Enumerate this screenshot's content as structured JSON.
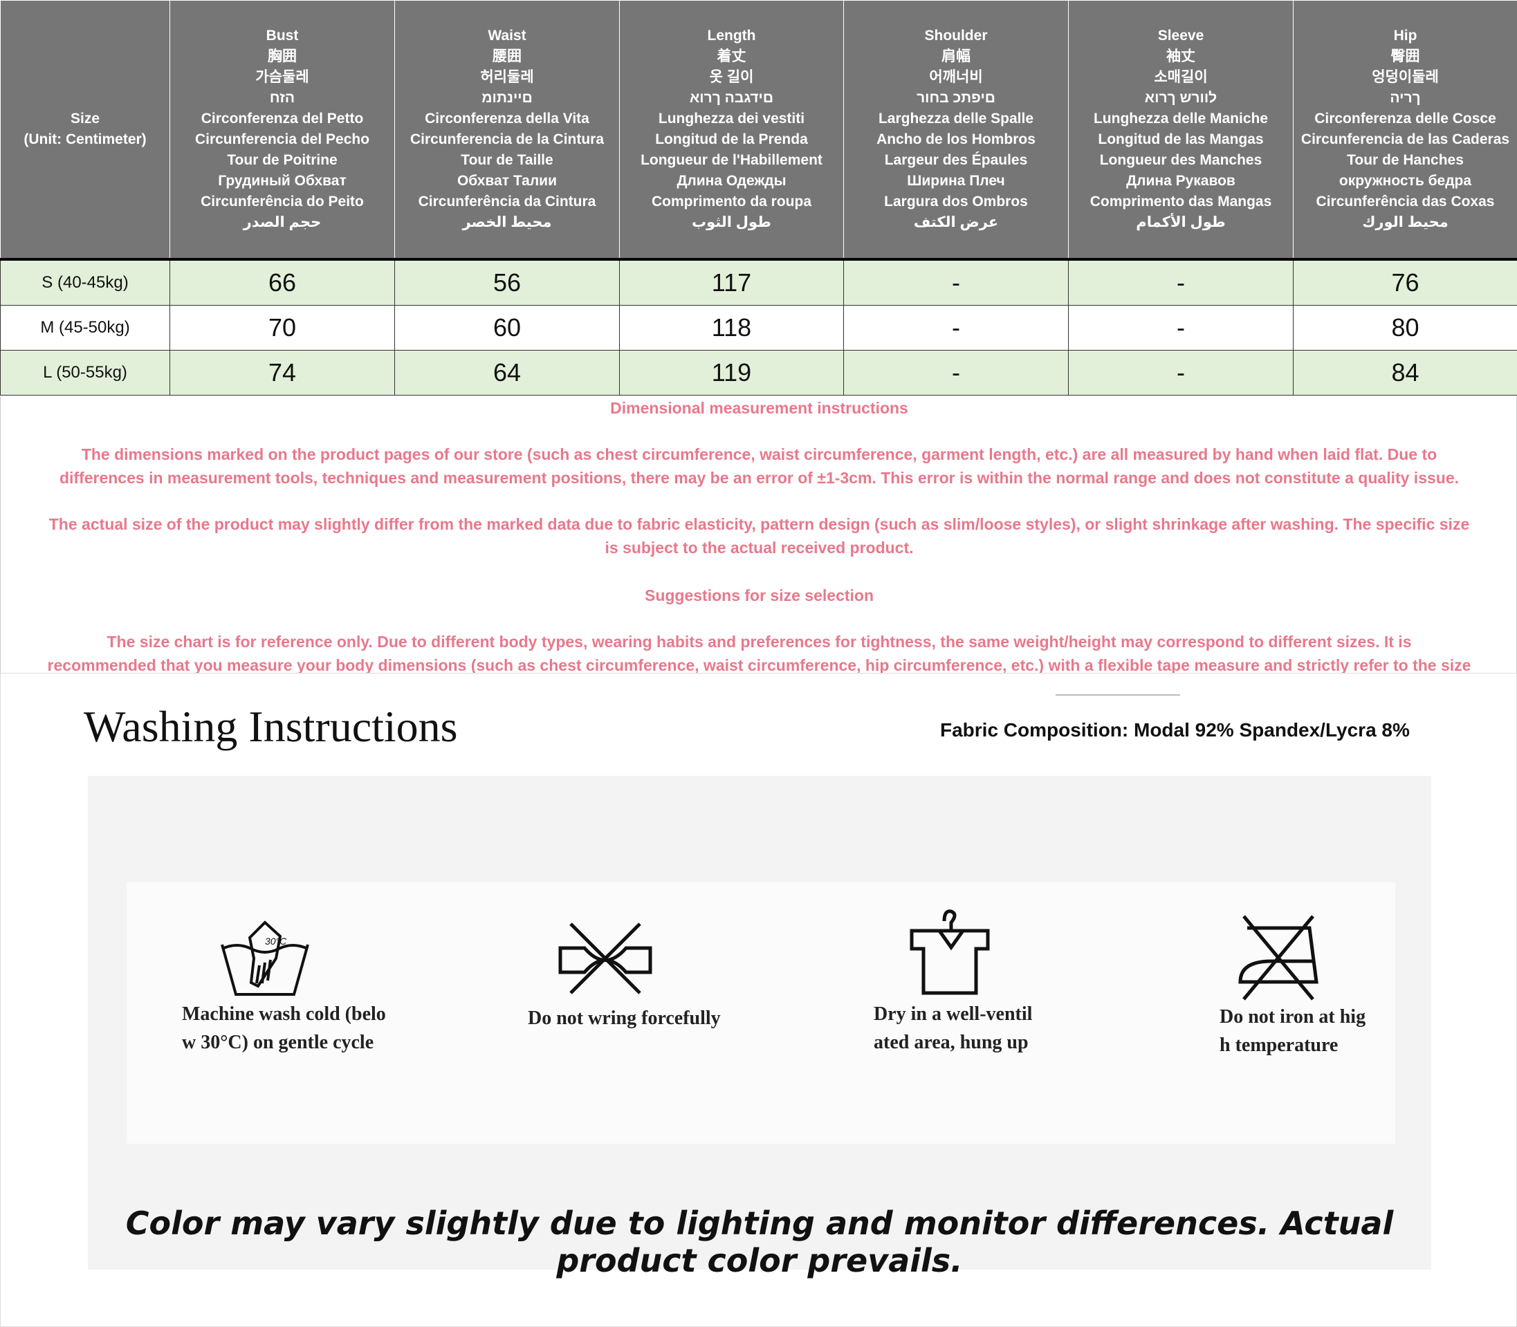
{
  "size_chart": {
    "headers": [
      {
        "key": "size",
        "lines": [
          "Size",
          "(Unit: Centimeter)"
        ]
      },
      {
        "key": "bust",
        "lines": [
          "Bust",
          "胸囲",
          "가슴둘레",
          "הזח",
          "Circonferenza del Petto",
          "Circunferencia del Pecho",
          "Tour de Poitrine",
          "Грудиный Обхват",
          "Circunferência do Peito",
          "حجم الصدر"
        ]
      },
      {
        "key": "waist",
        "lines": [
          "Waist",
          "腰囲",
          "허리둘레",
          "םיינתומ",
          "Circonferenza della Vita",
          "Circunferencia de la Cintura",
          "Tour de Taille",
          "Обхват Талии",
          "Circunferência da Cintura",
          "محيط الخصر"
        ]
      },
      {
        "key": "length",
        "lines": [
          "Length",
          "着丈",
          "옷 길이",
          "םידגבה ךרוא",
          "Lunghezza dei vestiti",
          "Longitud de la Prenda",
          "Longueur de l'Habillement",
          "Длина Одежды",
          "Comprimento da roupa",
          "طول الثوب"
        ]
      },
      {
        "key": "shoulder",
        "lines": [
          "Shoulder",
          "肩幅",
          "어깨너비",
          "םיפתכ בחור",
          "Larghezza delle Spalle",
          "Ancho de los Hombros",
          "Largeur des Épaules",
          "Ширина Плеч",
          "Largura dos Ombros",
          "عرض الكتف"
        ]
      },
      {
        "key": "sleeve",
        "lines": [
          "Sleeve",
          "袖丈",
          "소매길이",
          "לוורש ךרוא",
          "Lunghezza delle Maniche",
          "Longitud de las Mangas",
          "Longueur des Manches",
          "Длина Рукавов",
          "Comprimento das Mangas",
          "طول الأكمام"
        ]
      },
      {
        "key": "hip",
        "lines": [
          "Hip",
          "臀囲",
          "엉덩이둘레",
          "ךריה",
          "Circonferenza delle Cosce",
          "Circunferencia de las Caderas",
          "Tour de Hanches",
          "окружность бедра",
          "Circunferência das Coxas",
          "محيط الورك"
        ]
      }
    ],
    "rows": [
      {
        "cells": [
          "S (40-45kg)",
          "66",
          "56",
          "117",
          "-",
          "-",
          "76"
        ],
        "highlight": true
      },
      {
        "cells": [
          "M (45-50kg)",
          "70",
          "60",
          "118",
          "-",
          "-",
          "80"
        ],
        "highlight": false
      },
      {
        "cells": [
          "L (50-55kg)",
          "74",
          "64",
          "119",
          "-",
          "-",
          "84"
        ],
        "highlight": true
      }
    ],
    "highlight_color": "#e2f0d9",
    "header_color": "#767676"
  },
  "notes": {
    "color": "#e8788c",
    "title": "Dimensional measurement instructions",
    "para1_l1": "The dimensions marked on the product pages of our store (such as chest circumference, waist circumference, garment length, etc.) are all measured by hand when laid flat. Due to",
    "para1_l2": "differences in measurement tools, techniques and measurement positions, there may be an error of ±1-3cm. This error is within the normal range and does not constitute a quality issue.",
    "para2_l1": "The actual size of the product may slightly differ from the marked data due to fabric elasticity, pattern design (such as slim/loose styles), or slight shrinkage after washing. The specific size",
    "para2_l2": "is subject to the actual received product.",
    "suggest_title": "Suggestions for size selection",
    "para3_l1": "The size chart is for reference only. Due to different body types, wearing habits and preferences for tightness, the same weight/height may correspond to different sizes. It is",
    "para3_l2": "recommended that you measure your body dimensions (such as chest circumference, waist circumference, hip circumference, etc.) with a flexible tape measure and strictly refer to the size"
  },
  "washing": {
    "title": "Washing Instructions",
    "fabric": "Fabric Composition:  Modal 92% Spandex/Lycra 8%",
    "care": [
      {
        "icon": "hand-wash-30-icon",
        "l1": "Machine wash cold (belo",
        "l2": "w 30°C) on gentle cycle",
        "temp": "30°C"
      },
      {
        "icon": "do-not-wring-icon",
        "l1": "Do not wring forcefully",
        "l2": ""
      },
      {
        "icon": "hang-dry-icon",
        "l1": "Dry in a well-ventil",
        "l2": "ated area, hung up"
      },
      {
        "icon": "do-not-iron-icon",
        "l1": "Do not iron at hig",
        "l2": "h temperature"
      }
    ],
    "slogan": "Color may vary slightly due to lighting and monitor differences. Actual product color prevails."
  }
}
